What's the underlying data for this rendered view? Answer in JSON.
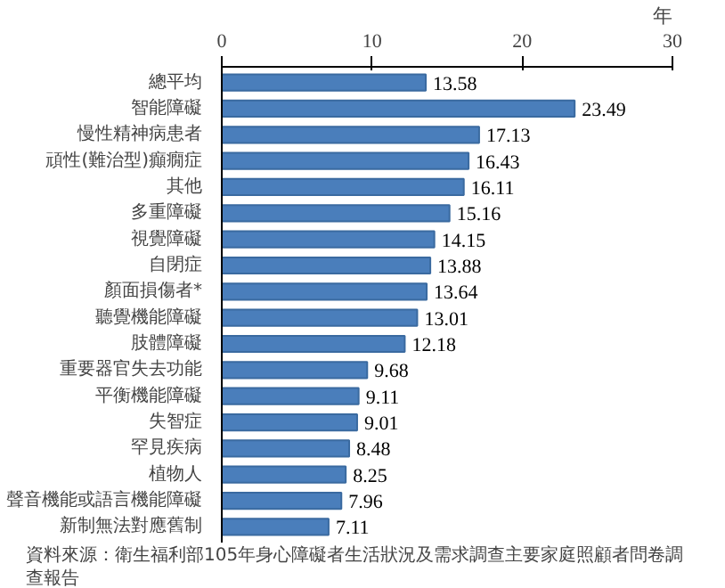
{
  "chart_data": {
    "type": "bar",
    "orientation": "horizontal",
    "xlabel": "年",
    "categories": [
      "總平均",
      "智能障礙",
      "慢性精神病患者",
      "頑性(難治型)癲癇症",
      "其他",
      "多重障礙",
      "視覺障礙",
      "自閉症",
      "顏面損傷者*",
      "聽覺機能障礙",
      "肢體障礙",
      "重要器官失去功能",
      "平衡機能障礙",
      "失智症",
      "罕見疾病",
      "植物人",
      "聲音機能或語言機能障礙",
      "新制無法對應舊制"
    ],
    "values": [
      13.58,
      23.49,
      17.13,
      16.43,
      16.11,
      15.16,
      14.15,
      13.88,
      13.64,
      13.01,
      12.18,
      9.68,
      9.11,
      9.01,
      8.48,
      8.25,
      7.96,
      7.11
    ],
    "color": "#4a7ebb",
    "xlim": [
      0,
      30
    ],
    "xticks": [
      0,
      10,
      20,
      30
    ],
    "data_labels": true,
    "grid": false,
    "annotations": [
      "資料來源：衛生福利部105年身心障礙者生活狀況及需求調查主要家庭照顧者問卷調查報告"
    ]
  }
}
